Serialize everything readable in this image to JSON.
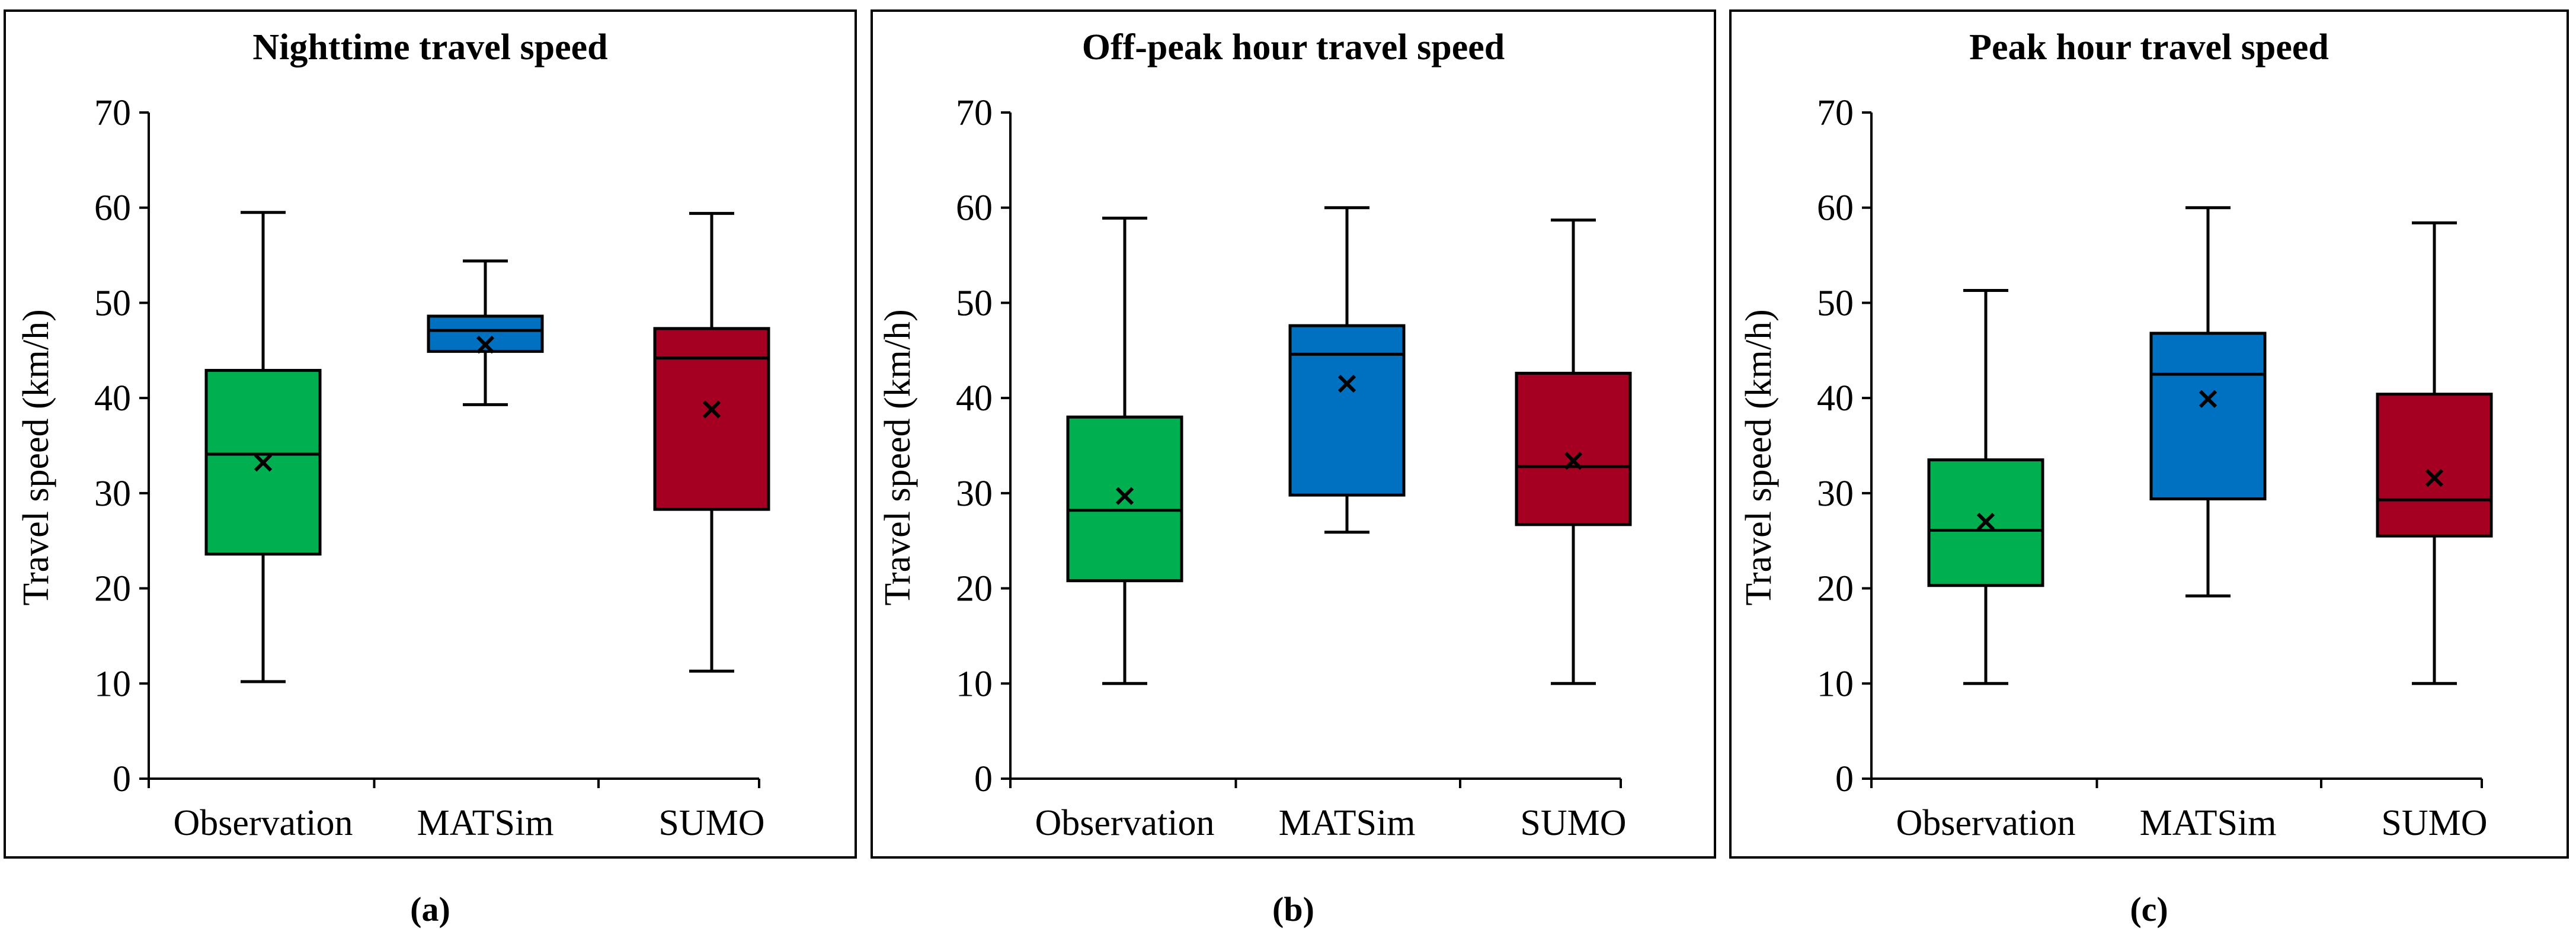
{
  "figure": {
    "captions": [
      "(a)",
      "(b)",
      "(c)"
    ]
  },
  "colors": {
    "Observation": "#00b050",
    "MATSim": "#0070c0",
    "SUMO": "#a50021"
  },
  "chart_data": [
    {
      "type": "box",
      "title": "Nighttime travel speed",
      "xlabel": "",
      "ylabel": "Travel speed (km/h)",
      "ylim": [
        0,
        70
      ],
      "yticks": [
        "0",
        "10",
        "20",
        "30",
        "40",
        "50",
        "60",
        "70"
      ],
      "categories": [
        "Observation",
        "MATSim",
        "SUMO"
      ],
      "boxes": [
        {
          "name": "Observation",
          "min": 10.2,
          "q1": 23.6,
          "median": 34.1,
          "q3": 42.9,
          "max": 59.5,
          "mean": 33.2
        },
        {
          "name": "MATSim",
          "min": 39.3,
          "q1": 44.9,
          "median": 47.1,
          "q3": 48.6,
          "max": 54.4,
          "mean": 45.6
        },
        {
          "name": "SUMO",
          "min": 11.3,
          "q1": 28.3,
          "median": 44.2,
          "q3": 47.3,
          "max": 59.4,
          "mean": 38.8
        }
      ]
    },
    {
      "type": "box",
      "title": "Off-peak hour travel speed",
      "xlabel": "",
      "ylabel": "Travel speed (km/h)",
      "ylim": [
        0,
        70
      ],
      "yticks": [
        "0",
        "10",
        "20",
        "30",
        "40",
        "50",
        "60",
        "70"
      ],
      "categories": [
        "Observation",
        "MATSim",
        "SUMO"
      ],
      "boxes": [
        {
          "name": "Observation",
          "min": 10.0,
          "q1": 20.8,
          "median": 28.2,
          "q3": 38.0,
          "max": 58.9,
          "mean": 29.7
        },
        {
          "name": "MATSim",
          "min": 25.9,
          "q1": 29.8,
          "median": 44.6,
          "q3": 47.6,
          "max": 60.0,
          "mean": 41.5
        },
        {
          "name": "SUMO",
          "min": 10.0,
          "q1": 26.7,
          "median": 32.8,
          "q3": 42.6,
          "max": 58.7,
          "mean": 33.4
        }
      ]
    },
    {
      "type": "box",
      "title": "Peak hour travel speed",
      "xlabel": "",
      "ylabel": "Travel speed (km/h)",
      "ylim": [
        0,
        70
      ],
      "yticks": [
        "0",
        "10",
        "20",
        "30",
        "40",
        "50",
        "60",
        "70"
      ],
      "categories": [
        "Observation",
        "MATSim",
        "SUMO"
      ],
      "boxes": [
        {
          "name": "Observation",
          "min": 10.0,
          "q1": 20.3,
          "median": 26.1,
          "q3": 33.5,
          "max": 51.3,
          "mean": 27.0
        },
        {
          "name": "MATSim",
          "min": 19.2,
          "q1": 29.4,
          "median": 42.5,
          "q3": 46.8,
          "max": 60.0,
          "mean": 39.9
        },
        {
          "name": "SUMO",
          "min": 10.0,
          "q1": 25.5,
          "median": 29.3,
          "q3": 40.4,
          "max": 58.4,
          "mean": 31.6
        }
      ]
    }
  ]
}
